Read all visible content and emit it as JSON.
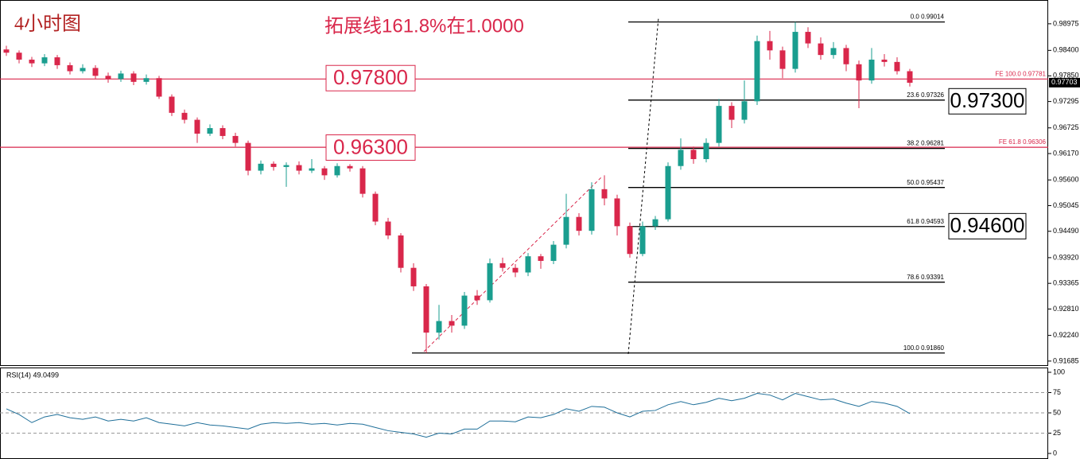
{
  "chart_data": {
    "type": "candlestick",
    "title": "4小时图",
    "subtitle": "拓展线161.8%在1.0000",
    "up_color": "#1a9e8f",
    "down_color": "#d9274b",
    "open": [
      0.9842,
      0.9835,
      0.982,
      0.9812,
      0.9825,
      0.9808,
      0.9795,
      0.9802,
      0.9785,
      0.9778,
      0.979,
      0.9772,
      0.978,
      0.974,
      0.9705,
      0.969,
      0.966,
      0.9672,
      0.9655,
      0.964,
      0.958,
      0.9595,
      0.9588,
      0.9592,
      0.958,
      0.9585,
      0.957,
      0.959,
      0.9585,
      0.953,
      0.947,
      0.944,
      0.937,
      0.933,
      0.923,
      0.9255,
      0.9245,
      0.931,
      0.93,
      0.938,
      0.937,
      0.936,
      0.9395,
      0.9385,
      0.942,
      0.948,
      0.945,
      0.954,
      0.952,
      0.946,
      0.94,
      0.946,
      0.9475,
      0.959,
      0.9625,
      0.9605,
      0.964,
      0.972,
      0.969,
      0.973,
      0.986,
      0.984,
      0.98,
      0.988,
      0.9855,
      0.983,
      0.9845,
      0.981,
      0.9775,
      0.982,
      0.9815,
      0.9795
    ],
    "high": [
      0.985,
      0.984,
      0.9826,
      0.9832,
      0.983,
      0.9814,
      0.981,
      0.9808,
      0.9792,
      0.9796,
      0.9795,
      0.9788,
      0.9785,
      0.9745,
      0.9712,
      0.9695,
      0.968,
      0.9678,
      0.9662,
      0.9645,
      0.9602,
      0.96,
      0.9598,
      0.96,
      0.9605,
      0.959,
      0.9596,
      0.9594,
      0.959,
      0.9535,
      0.9478,
      0.9445,
      0.938,
      0.9335,
      0.929,
      0.9268,
      0.9318,
      0.9322,
      0.939,
      0.9392,
      0.9378,
      0.9402,
      0.94,
      0.9428,
      0.953,
      0.9488,
      0.9555,
      0.957,
      0.9528,
      0.9468,
      0.947,
      0.9482,
      0.9598,
      0.965,
      0.9632,
      0.965,
      0.9735,
      0.9728,
      0.9775,
      0.9872,
      0.9882,
      0.9848,
      0.99014,
      0.989,
      0.9868,
      0.9858,
      0.9852,
      0.9818,
      0.9845,
      0.9832,
      0.9825,
      0.98
    ],
    "low": [
      0.9828,
      0.9812,
      0.9804,
      0.9806,
      0.98,
      0.9788,
      0.979,
      0.9778,
      0.977,
      0.9772,
      0.9765,
      0.9766,
      0.9735,
      0.9698,
      0.9682,
      0.964,
      0.9655,
      0.9648,
      0.9632,
      0.957,
      0.9572,
      0.958,
      0.9545,
      0.9572,
      0.9575,
      0.956,
      0.9565,
      0.9578,
      0.9522,
      0.9462,
      0.9432,
      0.936,
      0.932,
      0.9186,
      0.9215,
      0.923,
      0.9238,
      0.929,
      0.9295,
      0.9362,
      0.935,
      0.9352,
      0.9368,
      0.9378,
      0.9412,
      0.944,
      0.9442,
      0.9505,
      0.944,
      0.9392,
      0.9395,
      0.9452,
      0.947,
      0.9582,
      0.9595,
      0.9598,
      0.9632,
      0.9672,
      0.9682,
      0.9722,
      0.982,
      0.978,
      0.9792,
      0.9845,
      0.982,
      0.9822,
      0.9795,
      0.9715,
      0.9768,
      0.9805,
      0.9788,
      0.9762
    ],
    "close": [
      0.9835,
      0.982,
      0.9812,
      0.9825,
      0.9808,
      0.9795,
      0.9802,
      0.9785,
      0.9778,
      0.979,
      0.9772,
      0.978,
      0.974,
      0.9705,
      0.969,
      0.966,
      0.9672,
      0.9655,
      0.964,
      0.958,
      0.9595,
      0.9588,
      0.9592,
      0.958,
      0.9585,
      0.957,
      0.959,
      0.9585,
      0.953,
      0.947,
      0.944,
      0.937,
      0.933,
      0.923,
      0.9255,
      0.9245,
      0.931,
      0.93,
      0.938,
      0.937,
      0.936,
      0.9395,
      0.9385,
      0.942,
      0.948,
      0.945,
      0.954,
      0.952,
      0.946,
      0.94,
      0.946,
      0.9475,
      0.959,
      0.9625,
      0.9605,
      0.964,
      0.972,
      0.969,
      0.973,
      0.986,
      0.984,
      0.98,
      0.988,
      0.9855,
      0.983,
      0.9845,
      0.981,
      0.9775,
      0.982,
      0.9815,
      0.9795,
      0.977
    ],
    "ylim": [
      0.9158,
      0.9942
    ],
    "yticks": [
      {
        "value": 0.98975,
        "label": "0.98975"
      },
      {
        "value": 0.984,
        "label": "0.98400"
      },
      {
        "value": 0.9785,
        "label": "0.97850"
      },
      {
        "value": 0.97295,
        "label": "0.97295"
      },
      {
        "value": 0.96725,
        "label": "0.96725"
      },
      {
        "value": 0.9617,
        "label": "0.96170"
      },
      {
        "value": 0.956,
        "label": "0.95600"
      },
      {
        "value": 0.95045,
        "label": "0.95045"
      },
      {
        "value": 0.9449,
        "label": "0.94490"
      },
      {
        "value": 0.9392,
        "label": "0.93920"
      },
      {
        "value": 0.93365,
        "label": "0.93365"
      },
      {
        "value": 0.9281,
        "label": "0.92810"
      },
      {
        "value": 0.9224,
        "label": "0.92240"
      },
      {
        "value": 0.91685,
        "label": "0.91685"
      }
    ],
    "fib_levels": [
      {
        "value": 0.99014,
        "label": "0.0  0.99014"
      },
      {
        "value": 0.97326,
        "label": "23.6  0.97326"
      },
      {
        "value": 0.96281,
        "label": "38.2  0.96281"
      },
      {
        "value": 0.95437,
        "label": "50.0  0.95437"
      },
      {
        "value": 0.94593,
        "label": "61.8  0.94593"
      },
      {
        "value": 0.93391,
        "label": "78.6  0.93391"
      },
      {
        "value": 0.9186,
        "label": "100.0  0.91860"
      }
    ],
    "fe_levels": [
      {
        "value": 0.97781,
        "label": "FE 100.0  0.97781"
      },
      {
        "value": 0.96306,
        "label": "FE 61.8  0.96306"
      }
    ],
    "boxes": [
      {
        "value": 0.978,
        "label": "0.97800",
        "color": "#d9274b"
      },
      {
        "value": 0.963,
        "label": "0.96300",
        "color": "#d9274b"
      },
      {
        "value": 0.973,
        "label": "0.97300",
        "color": "#000000"
      },
      {
        "value": 0.946,
        "label": "0.94600",
        "color": "#000000"
      }
    ],
    "current_price": {
      "value": 0.97703,
      "label": "0.97703"
    },
    "rsi": {
      "label": "RSI(14) 49.0499",
      "color": "#1f6f99",
      "ylim": [
        0,
        100
      ],
      "yticks": [
        0,
        25,
        50,
        75,
        100
      ],
      "levels": [
        25,
        50,
        75
      ],
      "values": [
        55,
        48,
        38,
        45,
        48,
        44,
        42,
        45,
        40,
        42,
        40,
        44,
        38,
        36,
        34,
        38,
        35,
        34,
        32,
        30,
        36,
        38,
        37,
        38,
        36,
        37,
        35,
        37,
        36,
        32,
        28,
        26,
        24,
        20,
        25,
        24,
        30,
        30,
        40,
        40,
        39,
        45,
        44,
        48,
        55,
        52,
        58,
        57,
        50,
        45,
        52,
        53,
        60,
        64,
        60,
        63,
        68,
        65,
        68,
        74,
        72,
        66,
        74,
        70,
        66,
        67,
        62,
        58,
        64,
        62,
        58,
        49.0499
      ]
    }
  }
}
